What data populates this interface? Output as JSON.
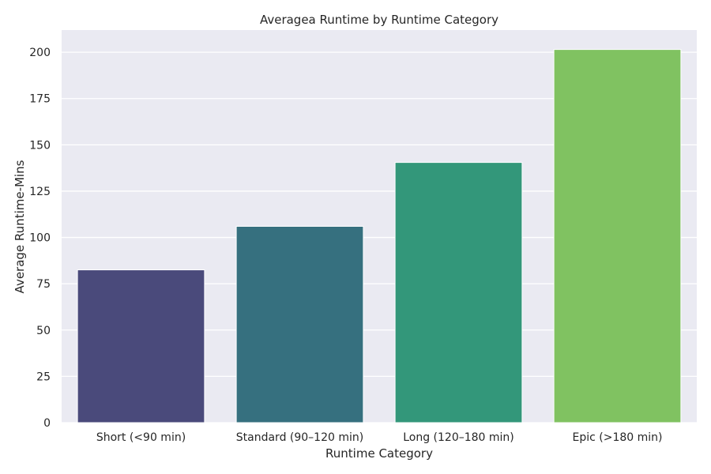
{
  "chart_data": {
    "type": "bar",
    "title": "Averagea Runtime by Runtime Category",
    "xlabel": "Runtime Category",
    "ylabel": "Average Runtime-Mins",
    "categories": [
      "Short (<90 min)",
      "Standard (90–120 min)",
      "Long (120–180 min)",
      "Epic (>180 min)"
    ],
    "values": [
      82.5,
      106,
      140.5,
      201.5
    ],
    "colors": [
      "#4a4a7b",
      "#36707f",
      "#33977a",
      "#80c261"
    ],
    "ylim": [
      0,
      212
    ],
    "yticks": [
      0,
      25,
      50,
      75,
      100,
      125,
      150,
      175,
      200
    ],
    "grid": true,
    "background": "#eaeaf2",
    "grid_color": "#ffffff"
  }
}
